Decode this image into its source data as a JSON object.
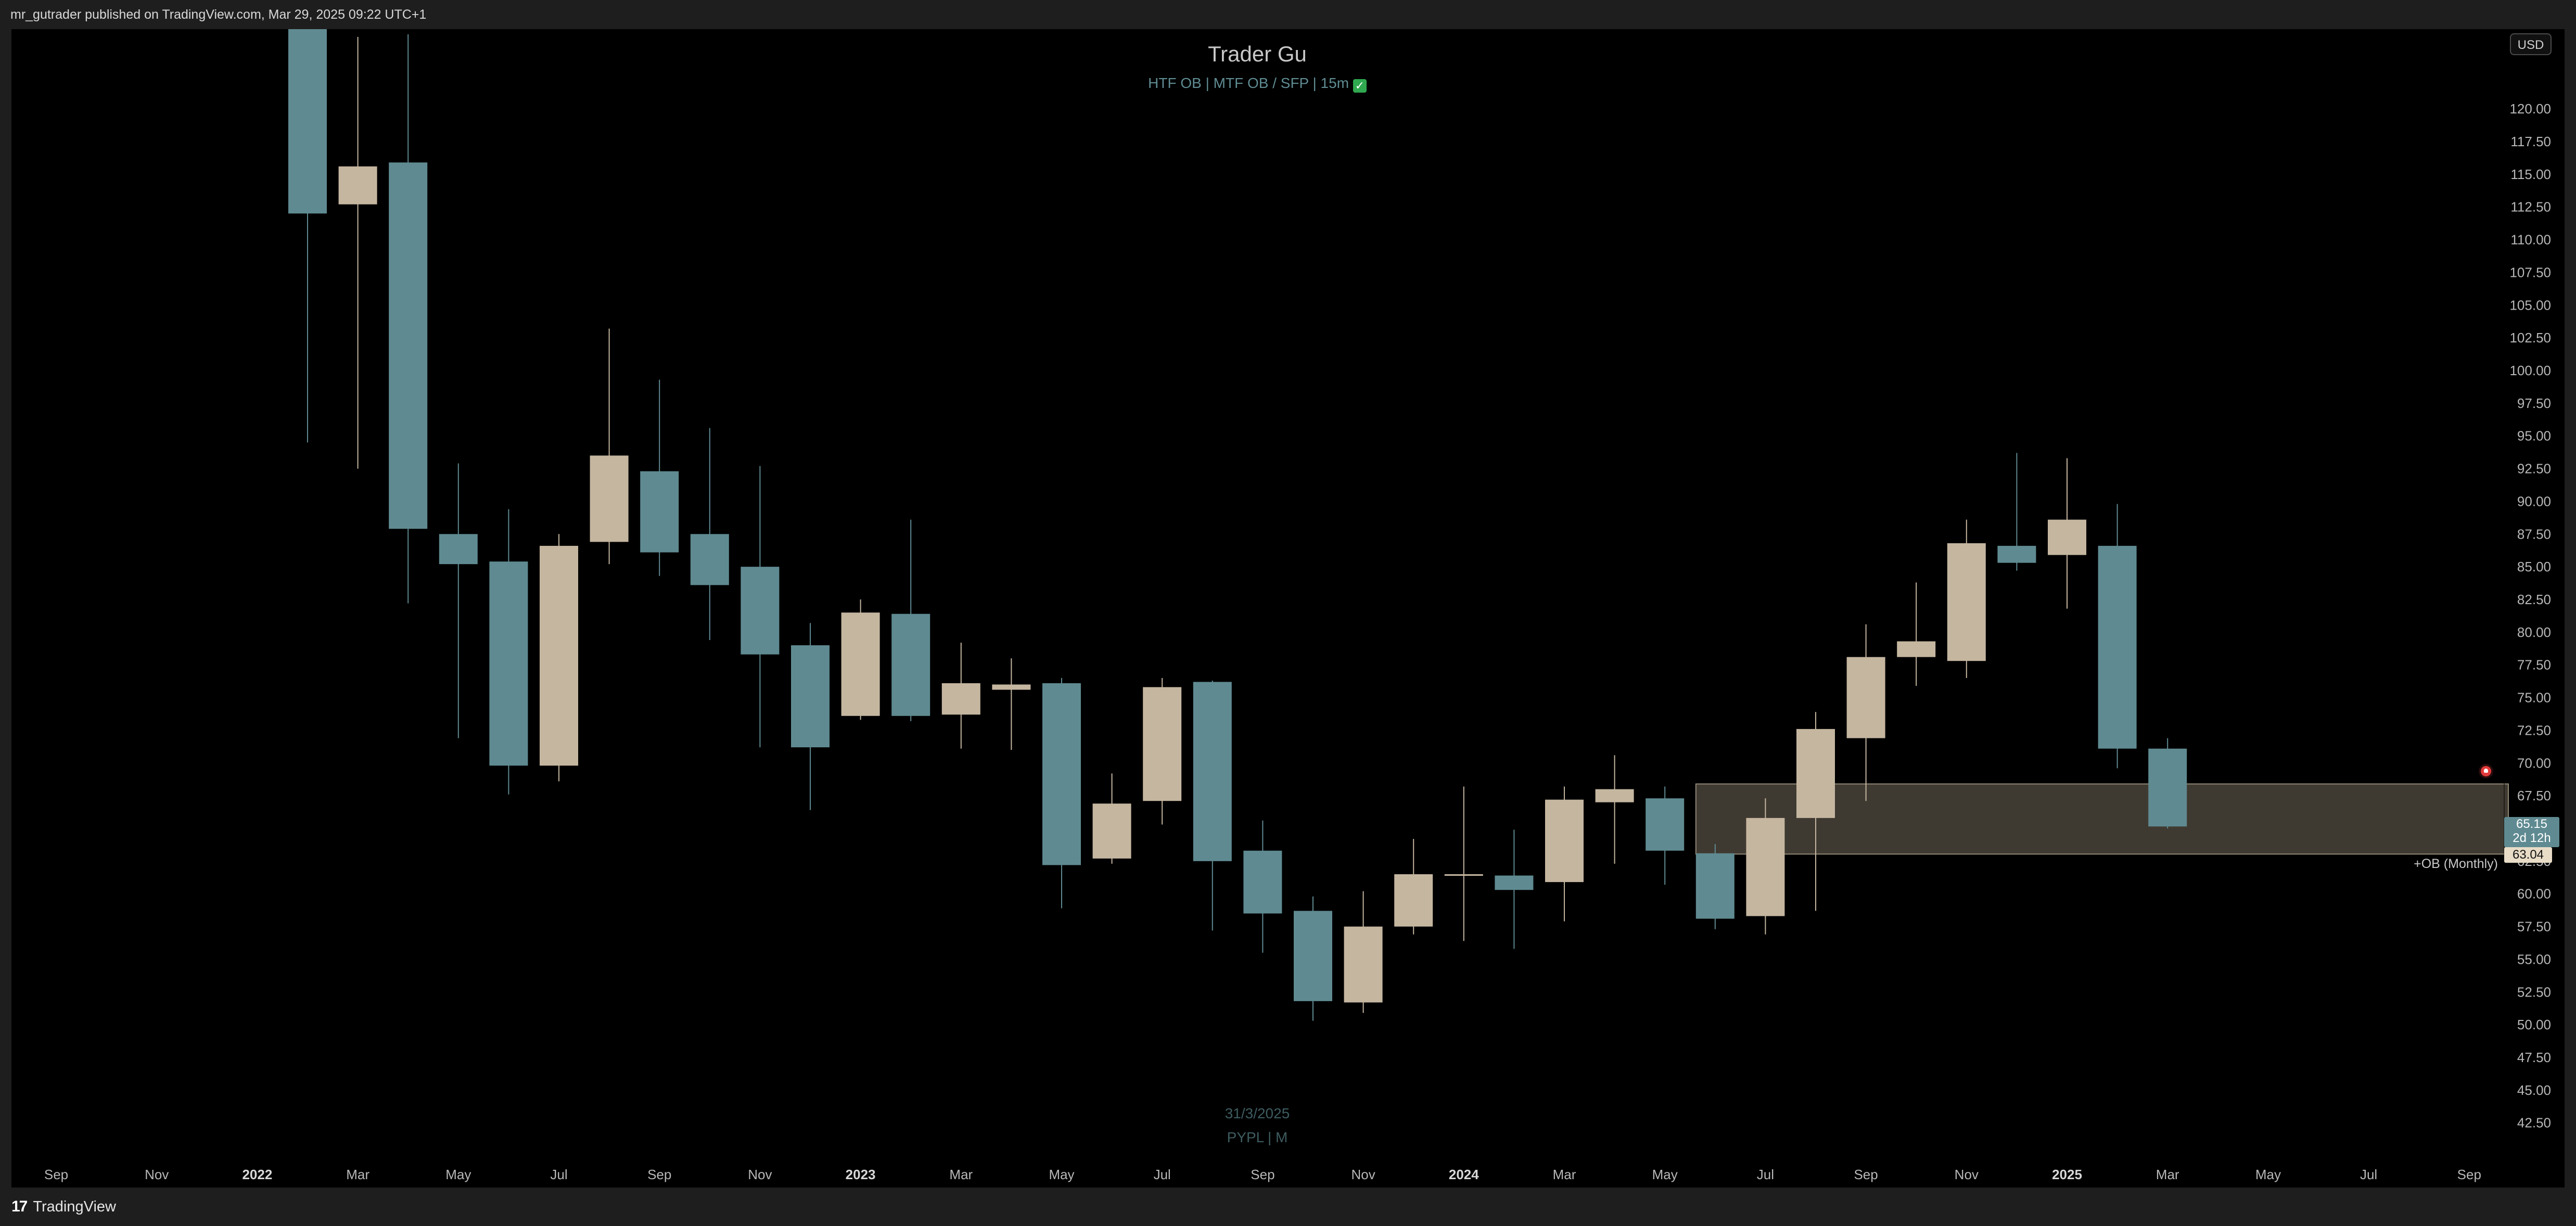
{
  "header": {
    "published_by": "mr_gutrader published on TradingView.com, Mar 29, 2025 09:22 UTC+1"
  },
  "footer": {
    "brand": "TradingView"
  },
  "toolbar": {
    "currency_button": "USD"
  },
  "indicator": {
    "title": "Trader Gu",
    "subtitle": "HTF OB  |  MTF OB / SFP  |  15m"
  },
  "watermark": {
    "date": "31/3/2025",
    "symbol": "PYPL | M"
  },
  "order_block": {
    "label": "+OB (Monthly)",
    "tag_value": "63.04"
  },
  "price_label": {
    "price": "65.15",
    "countdown": "2d 12h"
  },
  "colors": {
    "bear_candle": "#5f8a91",
    "bull_candle": "#c5b6a0",
    "order_block_fill": "#4a443a",
    "background": "#000000",
    "watermark": "#3e5c60"
  },
  "icons": [
    "alert-icon",
    "check-icon",
    "tradingview-logo-icon"
  ],
  "chart_data": {
    "type": "candlestick",
    "timeframe": "monthly",
    "title": "Trader Gu",
    "subtitle": "HTF OB | MTF OB / SFP | 15m",
    "ylim": [
      40.5,
      124.5
    ],
    "y_ticks": [
      "42.50",
      "45.00",
      "47.50",
      "50.00",
      "52.50",
      "55.00",
      "57.50",
      "60.00",
      "62.50",
      "65.00",
      "67.50",
      "70.00",
      "72.50",
      "75.00",
      "77.50",
      "80.00",
      "82.50",
      "85.00",
      "87.50",
      "90.00",
      "92.50",
      "95.00",
      "97.50",
      "100.00",
      "102.50",
      "105.00",
      "107.50",
      "110.00",
      "112.50",
      "115.00",
      "117.50",
      "120.00"
    ],
    "x_ticks": [
      {
        "label": "Sep",
        "month": "2021-09",
        "bold": false
      },
      {
        "label": "Nov",
        "month": "2021-11",
        "bold": false
      },
      {
        "label": "2022",
        "month": "2022-01",
        "bold": true
      },
      {
        "label": "Mar",
        "month": "2022-03",
        "bold": false
      },
      {
        "label": "May",
        "month": "2022-05",
        "bold": false
      },
      {
        "label": "Jul",
        "month": "2022-07",
        "bold": false
      },
      {
        "label": "Sep",
        "month": "2022-09",
        "bold": false
      },
      {
        "label": "Nov",
        "month": "2022-11",
        "bold": false
      },
      {
        "label": "2023",
        "month": "2023-01",
        "bold": true
      },
      {
        "label": "Mar",
        "month": "2023-03",
        "bold": false
      },
      {
        "label": "May",
        "month": "2023-05",
        "bold": false
      },
      {
        "label": "Jul",
        "month": "2023-07",
        "bold": false
      },
      {
        "label": "Sep",
        "month": "2023-09",
        "bold": false
      },
      {
        "label": "Nov",
        "month": "2023-11",
        "bold": false
      },
      {
        "label": "2024",
        "month": "2024-01",
        "bold": true
      },
      {
        "label": "Mar",
        "month": "2024-03",
        "bold": false
      },
      {
        "label": "May",
        "month": "2024-05",
        "bold": false
      },
      {
        "label": "Jul",
        "month": "2024-07",
        "bold": false
      },
      {
        "label": "Sep",
        "month": "2024-09",
        "bold": false
      },
      {
        "label": "Nov",
        "month": "2024-11",
        "bold": false
      },
      {
        "label": "2025",
        "month": "2025-01",
        "bold": true
      },
      {
        "label": "Mar",
        "month": "2025-03",
        "bold": false
      },
      {
        "label": "May",
        "month": "2025-05",
        "bold": false
      },
      {
        "label": "Jul",
        "month": "2025-07",
        "bold": false
      },
      {
        "label": "Sep",
        "month": "2025-09",
        "bold": false
      }
    ],
    "candles": [
      {
        "month": "2022-02",
        "open": 127,
        "high": 127,
        "low": 94.5,
        "close": 112
      },
      {
        "month": "2022-03",
        "open": 112.7,
        "high": 125.5,
        "low": 92.5,
        "close": 115.6
      },
      {
        "month": "2022-04",
        "open": 115.9,
        "high": 125.7,
        "low": 82.2,
        "close": 87.9
      },
      {
        "month": "2022-05",
        "open": 87.5,
        "high": 92.9,
        "low": 71.9,
        "close": 85.2
      },
      {
        "month": "2022-06",
        "open": 85.4,
        "high": 89.4,
        "low": 67.6,
        "close": 69.8
      },
      {
        "month": "2022-07",
        "open": 69.8,
        "high": 87.5,
        "low": 68.6,
        "close": 86.6
      },
      {
        "month": "2022-08",
        "open": 86.9,
        "high": 103.2,
        "low": 85.2,
        "close": 93.5
      },
      {
        "month": "2022-09",
        "open": 92.3,
        "high": 99.3,
        "low": 84.3,
        "close": 86.1
      },
      {
        "month": "2022-10",
        "open": 87.5,
        "high": 95.6,
        "low": 79.4,
        "close": 83.6
      },
      {
        "month": "2022-11",
        "open": 85,
        "high": 92.7,
        "low": 71.2,
        "close": 78.3
      },
      {
        "month": "2022-12",
        "open": 79,
        "high": 80.7,
        "low": 66.4,
        "close": 71.2
      },
      {
        "month": "2023-01",
        "open": 73.6,
        "high": 82.5,
        "low": 73.3,
        "close": 81.5
      },
      {
        "month": "2023-02",
        "open": 81.4,
        "high": 88.6,
        "low": 73.2,
        "close": 73.6
      },
      {
        "month": "2023-03",
        "open": 73.7,
        "high": 79.2,
        "low": 71.1,
        "close": 76.1
      },
      {
        "month": "2023-04",
        "open": 75.6,
        "high": 78,
        "low": 71,
        "close": 76
      },
      {
        "month": "2023-05",
        "open": 76.1,
        "high": 76.5,
        "low": 58.9,
        "close": 62.2
      },
      {
        "month": "2023-06",
        "open": 62.7,
        "high": 69.2,
        "low": 62.3,
        "close": 66.9
      },
      {
        "month": "2023-07",
        "open": 67.1,
        "high": 76.5,
        "low": 65.3,
        "close": 75.8
      },
      {
        "month": "2023-08",
        "open": 76.2,
        "high": 76.3,
        "low": 57.2,
        "close": 62.5
      },
      {
        "month": "2023-09",
        "open": 63.3,
        "high": 65.6,
        "low": 55.5,
        "close": 58.5
      },
      {
        "month": "2023-10",
        "open": 58.7,
        "high": 59.8,
        "low": 50.3,
        "close": 51.8
      },
      {
        "month": "2023-11",
        "open": 51.7,
        "high": 60.2,
        "low": 50.9,
        "close": 57.5
      },
      {
        "month": "2023-12",
        "open": 57.5,
        "high": 64.2,
        "low": 56.9,
        "close": 61.5
      },
      {
        "month": "2024-01",
        "open": 61.4,
        "high": 68.2,
        "low": 56.4,
        "close": 61.5
      },
      {
        "month": "2024-02",
        "open": 61.4,
        "high": 64.9,
        "low": 55.8,
        "close": 60.3
      },
      {
        "month": "2024-03",
        "open": 60.9,
        "high": 68.2,
        "low": 57.9,
        "close": 67.2
      },
      {
        "month": "2024-04",
        "open": 67,
        "high": 70.6,
        "low": 62.3,
        "close": 68
      },
      {
        "month": "2024-05",
        "open": 67.3,
        "high": 68.2,
        "low": 60.7,
        "close": 63.3
      },
      {
        "month": "2024-06",
        "open": 63.1,
        "high": 63.8,
        "low": 57.3,
        "close": 58.1
      },
      {
        "month": "2024-07",
        "open": 58.3,
        "high": 67.3,
        "low": 56.9,
        "close": 65.8
      },
      {
        "month": "2024-08",
        "open": 65.8,
        "high": 73.9,
        "low": 58.7,
        "close": 72.6
      },
      {
        "month": "2024-09",
        "open": 71.9,
        "high": 80.6,
        "low": 67.1,
        "close": 78.1
      },
      {
        "month": "2024-10",
        "open": 78.1,
        "high": 83.8,
        "low": 75.9,
        "close": 79.3
      },
      {
        "month": "2024-11",
        "open": 77.8,
        "high": 88.6,
        "low": 76.5,
        "close": 86.8
      },
      {
        "month": "2024-12",
        "open": 86.6,
        "high": 93.7,
        "low": 84.7,
        "close": 85.3
      },
      {
        "month": "2025-01",
        "open": 85.9,
        "high": 93.3,
        "low": 81.8,
        "close": 88.6
      },
      {
        "month": "2025-02",
        "open": 86.6,
        "high": 89.8,
        "low": 69.6,
        "close": 71.1
      },
      {
        "month": "2025-03",
        "open": 71.1,
        "high": 71.9,
        "low": 65.0,
        "close": 65.15
      }
    ],
    "order_block_zone": {
      "label": "+OB (Monthly)",
      "start_month": "2024-06",
      "top": 68.4,
      "bottom": 63.04
    },
    "last_price": 65.15,
    "grid": false,
    "legend": "none"
  }
}
